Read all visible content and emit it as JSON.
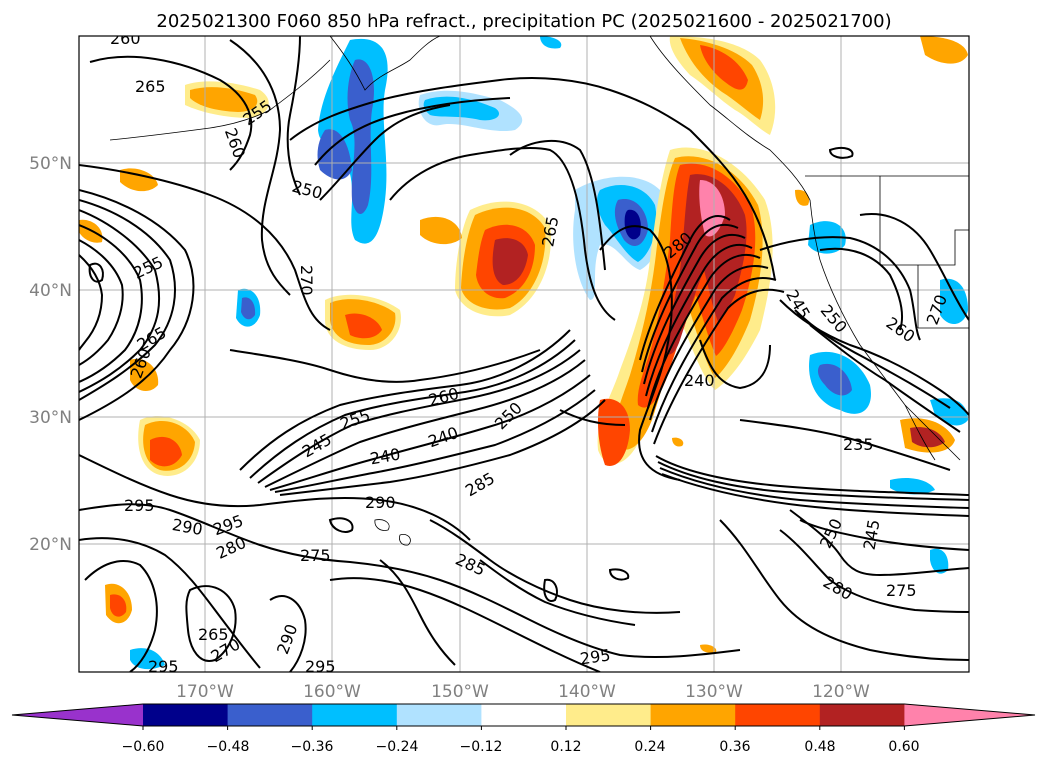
{
  "title": "2025021300 F060 850 hPa refract., precipitation PC (2025021600 - 2025021700)",
  "map": {
    "lat_labels": [
      "50°N",
      "40°N",
      "30°N",
      "20°N"
    ],
    "lon_labels": [
      "170°W",
      "160°W",
      "150°W",
      "140°W",
      "130°W",
      "120°W"
    ],
    "contour_labels": [
      "260",
      "265",
      "260",
      "255",
      "250",
      "270",
      "255",
      "265",
      "260",
      "265",
      "280",
      "245",
      "250",
      "260",
      "270",
      "240",
      "235",
      "260",
      "255",
      "245",
      "240",
      "240",
      "250",
      "285",
      "290",
      "295",
      "290",
      "295",
      "280",
      "275",
      "285",
      "265",
      "270",
      "290",
      "295",
      "295",
      "295",
      "250",
      "245",
      "280",
      "275"
    ]
  },
  "colorbar": {
    "tick_labels": [
      "−0.60",
      "−0.48",
      "−0.36",
      "−0.24",
      "−0.12",
      "0.12",
      "0.24",
      "0.36",
      "0.48",
      "0.60"
    ],
    "colors": [
      "#9932cc",
      "#00008b",
      "#3a5fcd",
      "#00bfff",
      "#b0e2ff",
      "#ffffff",
      "#ffec8b",
      "#ffa500",
      "#ff4500",
      "#b22222",
      "#ff82ab"
    ]
  }
}
